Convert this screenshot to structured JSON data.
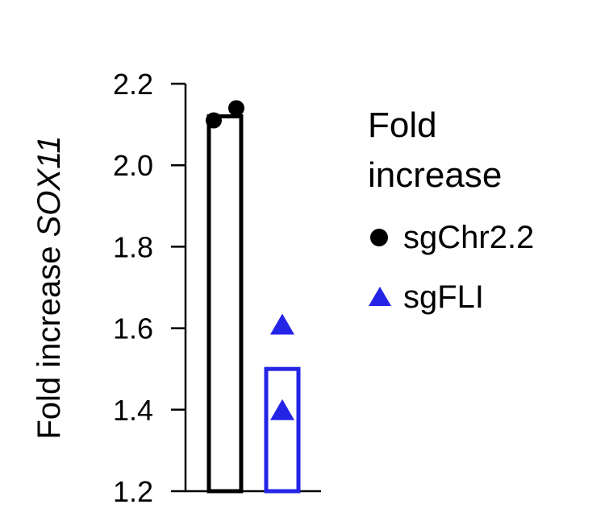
{
  "chart_data": {
    "type": "bar",
    "ylabel": "Fold increase",
    "ylabel_italic": "SOX11",
    "ylim": [
      1.2,
      2.2
    ],
    "yticks": [
      "1.2",
      "1.4",
      "1.6",
      "1.8",
      "2.0",
      "2.2"
    ],
    "ytick_values": [
      1.2,
      1.4,
      1.6,
      1.8,
      2.0,
      2.2
    ],
    "series": [
      {
        "name": "sgChr2.2",
        "mean": 2.12,
        "points": [
          2.11,
          2.14
        ],
        "color": "#000000",
        "marker": "circle"
      },
      {
        "name": "sgFLI",
        "mean": 1.5,
        "points": [
          1.61,
          1.4
        ],
        "color": "#2424e6",
        "marker": "triangle"
      }
    ],
    "legend": {
      "title_line1": "Fold",
      "title_line2": "increase",
      "placement": "right"
    },
    "grid": false
  }
}
